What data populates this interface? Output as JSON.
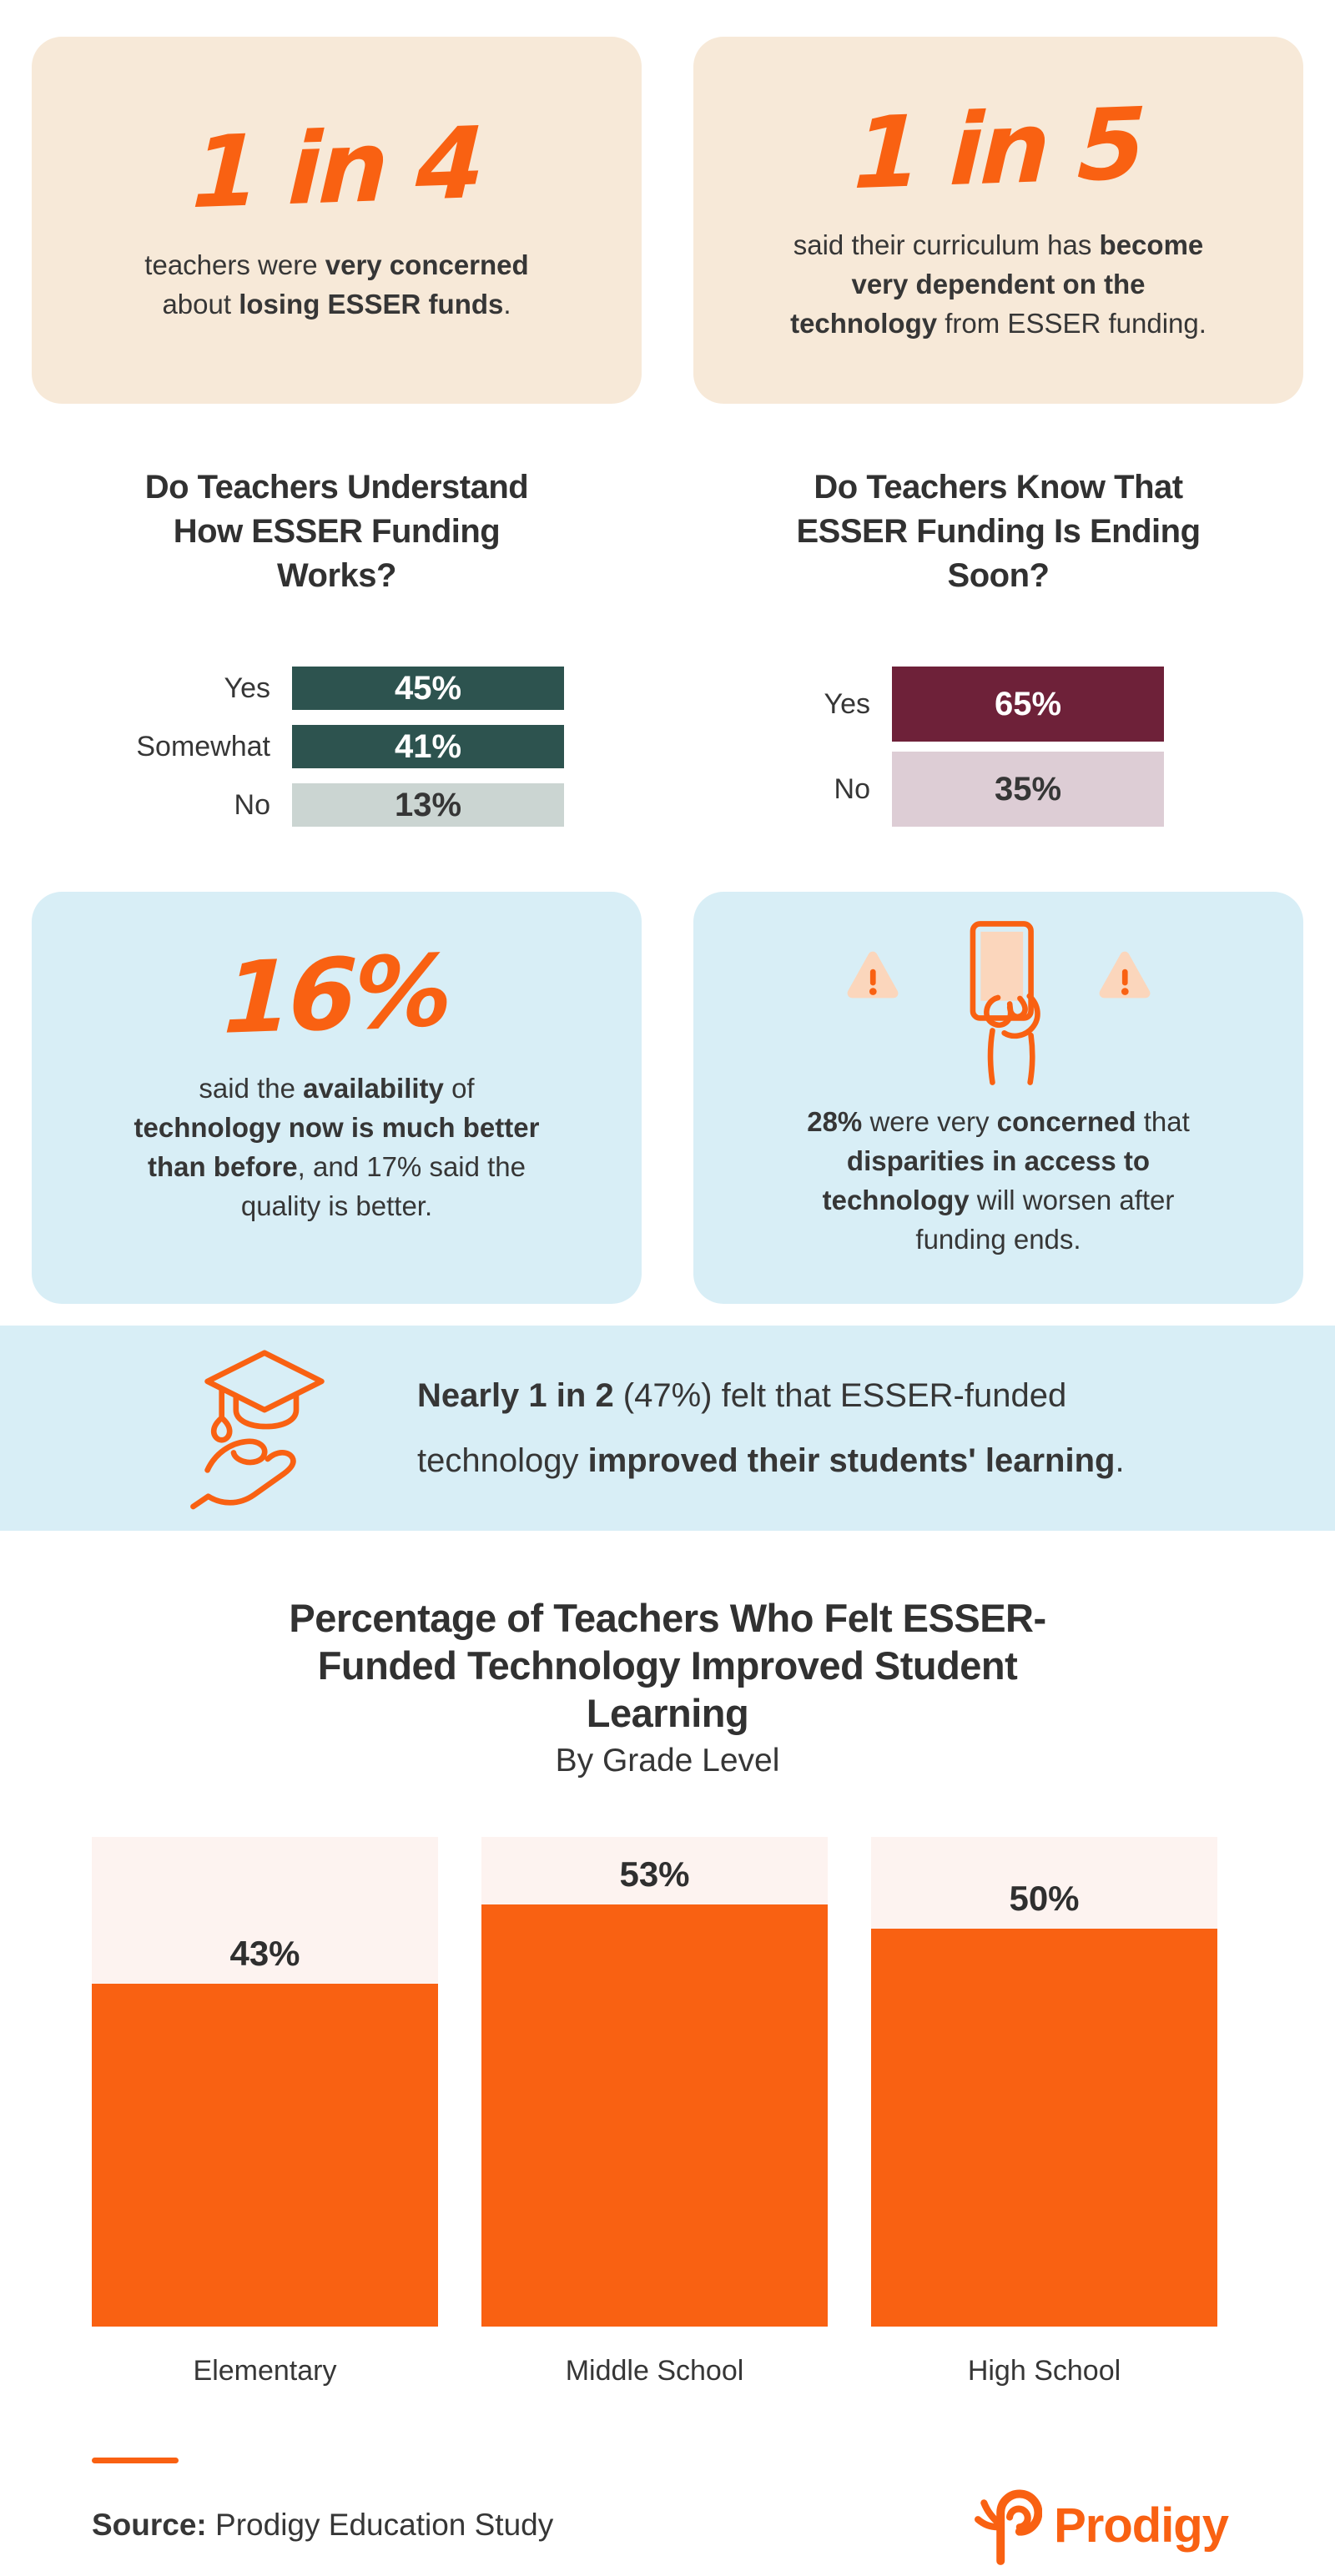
{
  "colors": {
    "brand_orange": "#F96112",
    "peach_card_bg": "#F7E9D8",
    "blue_card_bg": "#D8EEF6",
    "dark_text": "#363636",
    "teal_bar": "#2D534F",
    "gray_green_bar": "#CBD5D2",
    "maroon_bar": "#6E2139",
    "mauve_bar": "#DDCDD5",
    "chart_track": "#FDF3F0",
    "icon_peach_fill": "#FBD6BC"
  },
  "stat_cards": [
    {
      "number": "1 in 4",
      "text": [
        {
          "t": "teachers were ",
          "b": false
        },
        {
          "t": "very concerned",
          "b": true
        },
        {
          "t": " about ",
          "b": false
        },
        {
          "t": "losing ESSER funds",
          "b": true
        },
        {
          "t": ".",
          "b": false
        }
      ]
    },
    {
      "number": "1 in 5",
      "text": [
        {
          "t": "said their curriculum has ",
          "b": false
        },
        {
          "t": "become very dependent on the technology",
          "b": true
        },
        {
          "t": " from ESSER funding.",
          "b": false
        }
      ]
    }
  ],
  "highlight_cards": {
    "left": {
      "number": "16%",
      "text": [
        {
          "t": "said the ",
          "b": false
        },
        {
          "t": "availability",
          "b": true
        },
        {
          "t": " of ",
          "b": false
        },
        {
          "t": "technology now is much better than before",
          "b": true
        },
        {
          "t": ", and 17% said the quality is better.",
          "b": false
        }
      ]
    },
    "right": {
      "text": [
        {
          "t": "28%",
          "b": true
        },
        {
          "t": " were very ",
          "b": false
        },
        {
          "t": "concerned",
          "b": true
        },
        {
          "t": " that ",
          "b": false
        },
        {
          "t": "disparities in access to technology",
          "b": true
        },
        {
          "t": " will worsen after funding ends.",
          "b": false
        }
      ]
    }
  },
  "banner": {
    "text": [
      {
        "t": "Nearly 1 in 2",
        "b": true
      },
      {
        "t": " (47%) felt that ESSER-funded technology ",
        "b": false
      },
      {
        "t": "improved their students' learning",
        "b": true
      },
      {
        "t": ".",
        "b": false
      }
    ]
  },
  "chart_data": [
    {
      "type": "bar",
      "orientation": "horizontal",
      "title": "Do Teachers Understand How ESSER Funding Works?",
      "categories": [
        "Yes",
        "Somewhat",
        "No"
      ],
      "values": [
        45,
        41,
        13
      ],
      "value_labels": [
        "45%",
        "41%",
        "13%"
      ],
      "bar_colors": [
        "#2D534F",
        "#2D534F",
        "#CBD5D2"
      ],
      "value_text_colors": [
        "#FFFFFF",
        "#FFFFFF",
        "#363636"
      ],
      "xlim": [
        0,
        100
      ],
      "grid": false,
      "note": "bars drawn equal width; values shown as centered labels"
    },
    {
      "type": "bar",
      "orientation": "horizontal",
      "title": "Do Teachers Know That ESSER Funding Is Ending Soon?",
      "categories": [
        "Yes",
        "No"
      ],
      "values": [
        65,
        35
      ],
      "value_labels": [
        "65%",
        "35%"
      ],
      "bar_colors": [
        "#6E2139",
        "#DDCDD5"
      ],
      "value_text_colors": [
        "#FFFFFF",
        "#363636"
      ],
      "xlim": [
        0,
        100
      ],
      "grid": false,
      "note": "bars drawn equal width; values shown as centered labels"
    },
    {
      "type": "bar",
      "orientation": "vertical",
      "title": "Percentage of Teachers Who Felt ESSER-Funded Technology Improved Student Learning",
      "subtitle": "By Grade Level",
      "categories": [
        "Elementary",
        "Middle School",
        "High School"
      ],
      "values": [
        43,
        53,
        50
      ],
      "value_labels": [
        "43%",
        "53%",
        "50%"
      ],
      "bar_color": "#F96112",
      "track_color": "#FDF3F0",
      "ylim": [
        0,
        62
      ],
      "grid": false
    }
  ],
  "icons": {
    "warning": "warning-triangle",
    "device": "device-in-hand",
    "banner": "graduation-cap-in-hand",
    "logo": "prodigy-swirl-p"
  },
  "footer": {
    "source_label": "Source:",
    "source_text": " Prodigy Education Study",
    "brand_wordmark": "Prodigy"
  }
}
